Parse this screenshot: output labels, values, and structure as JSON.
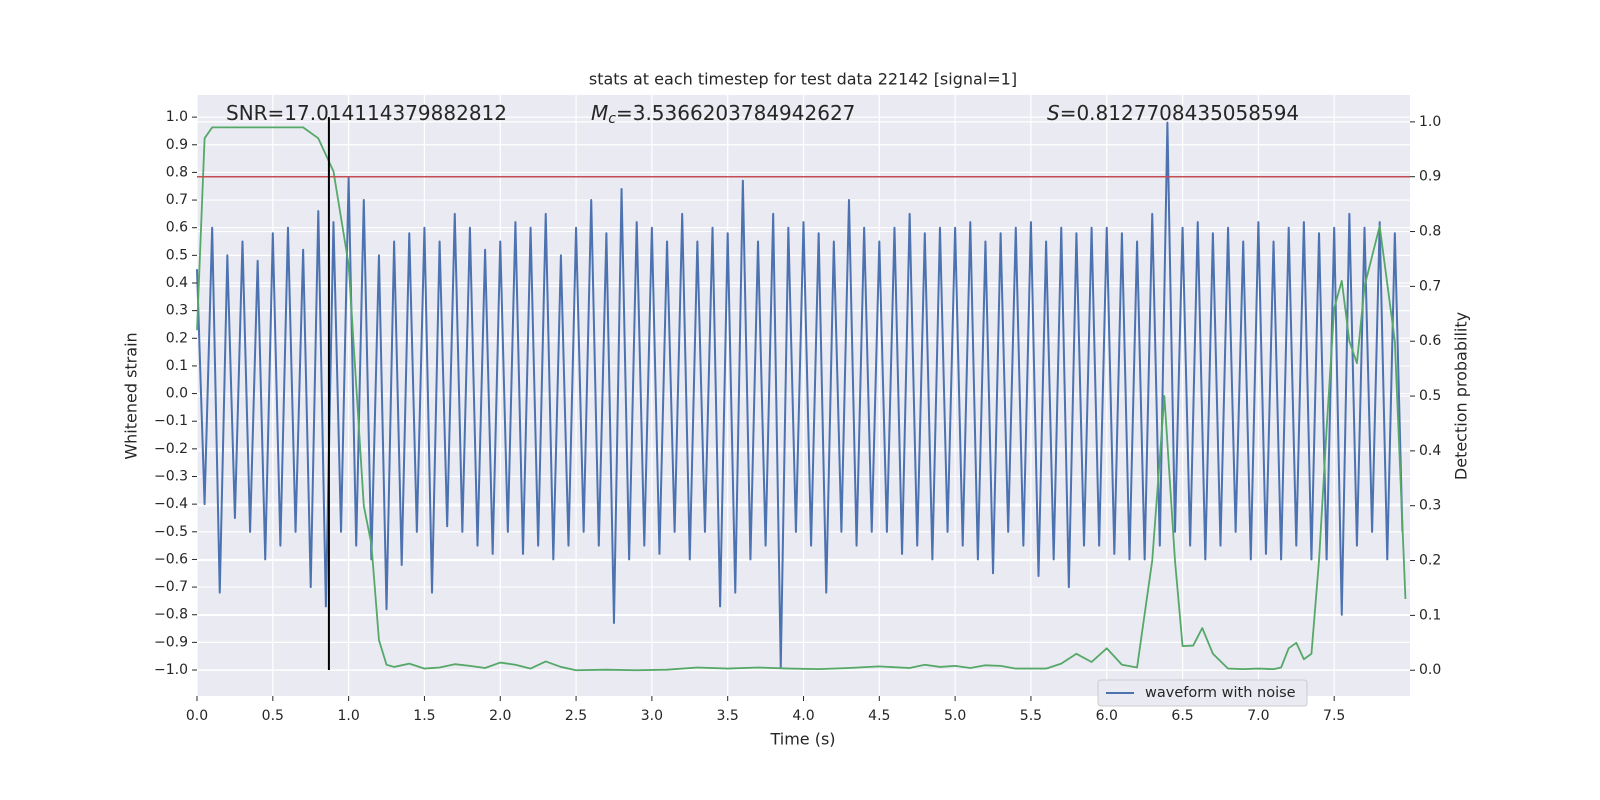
{
  "chart_data": {
    "type": "line",
    "title": "stats at each timestep for test data 22142 [signal=1]",
    "xlabel": "Time (s)",
    "ylabel": "Whitened strain",
    "y2label": "Detection probability",
    "annotations": [
      {
        "text": "SNR=17.014114379882812"
      },
      {
        "symbol": "M",
        "subscript": "c",
        "text": "=3.5366203784942627"
      },
      {
        "symbol": "S",
        "text": "=0.8127708435058594"
      }
    ],
    "xlim": [
      0,
      8.0
    ],
    "ylim": [
      -1.094,
      1.08
    ],
    "y2lim": [
      -0.047,
      1.049
    ],
    "xticks": [
      {
        "value": 0,
        "label": "0.0"
      },
      0.5,
      {
        "value": 1,
        "label": "1.0"
      },
      1.5,
      {
        "value": 2,
        "label": "2.0"
      },
      2.5,
      {
        "value": 3,
        "label": "3.0"
      },
      3.5,
      {
        "value": 4,
        "label": "4.0"
      },
      4.5,
      {
        "value": 5,
        "label": "5.0"
      },
      5.5,
      {
        "value": 6,
        "label": "6.0"
      },
      6.5,
      {
        "value": 7,
        "label": "7.0"
      },
      7.5
    ],
    "yticks": [
      {
        "value": -1,
        "label": "−1.0"
      },
      {
        "value": -0.9,
        "label": "−0.9"
      },
      {
        "value": -0.8,
        "label": "−0.8"
      },
      {
        "value": -0.7,
        "label": "−0.7"
      },
      {
        "value": -0.6,
        "label": "−0.6"
      },
      {
        "value": -0.5,
        "label": "−0.5"
      },
      {
        "value": -0.4,
        "label": "−0.4"
      },
      {
        "value": -0.3,
        "label": "−0.3"
      },
      {
        "value": -0.2,
        "label": "−0.2"
      },
      {
        "value": -0.1,
        "label": "−0.1"
      },
      {
        "value": 0,
        "label": "0.0"
      },
      0.1,
      0.2,
      0.3,
      0.4,
      0.5,
      0.6,
      0.7,
      0.8,
      0.9,
      {
        "value": 1,
        "label": "1.0"
      }
    ],
    "y2ticks": [
      {
        "value": 0,
        "label": "0.0"
      },
      0.1,
      0.2,
      0.3,
      0.4,
      0.5,
      0.6,
      0.7,
      0.8,
      0.9,
      {
        "value": 1,
        "label": "1.0"
      }
    ],
    "grid": true,
    "legend": "lower right",
    "series": [
      {
        "name": "waveform with noise",
        "color": "#4c72b0",
        "x": [
          0,
          0.05,
          0.1,
          0.15,
          0.2,
          0.25,
          0.3,
          0.35,
          0.4,
          0.45,
          0.5,
          0.55,
          0.6,
          0.65,
          0.7,
          0.75,
          0.8,
          0.85,
          0.9,
          0.95,
          1,
          1.05,
          1.1,
          1.15,
          1.2,
          1.25,
          1.3,
          1.35,
          1.4,
          1.45,
          1.5,
          1.55,
          1.6,
          1.65,
          1.7,
          1.75,
          1.8,
          1.85,
          1.9,
          1.95,
          2,
          2.05,
          2.1,
          2.15,
          2.2,
          2.25,
          2.3,
          2.35,
          2.4,
          2.45,
          2.5,
          2.55,
          2.6,
          2.65,
          2.7,
          2.75,
          2.8,
          2.85,
          2.9,
          2.95,
          3,
          3.05,
          3.1,
          3.15,
          3.2,
          3.25,
          3.3,
          3.35,
          3.4,
          3.45,
          3.5,
          3.55,
          3.6,
          3.65,
          3.7,
          3.75,
          3.8,
          3.85,
          3.9,
          3.95,
          4,
          4.05,
          4.1,
          4.15,
          4.2,
          4.25,
          4.3,
          4.35,
          4.4,
          4.45,
          4.5,
          4.55,
          4.6,
          4.65,
          4.7,
          4.75,
          4.8,
          4.85,
          4.9,
          4.95,
          5,
          5.05,
          5.1,
          5.15,
          5.2,
          5.25,
          5.3,
          5.35,
          5.4,
          5.45,
          5.5,
          5.55,
          5.6,
          5.65,
          5.7,
          5.75,
          5.8,
          5.85,
          5.9,
          5.95,
          6,
          6.05,
          6.1,
          6.15,
          6.2,
          6.25,
          6.3,
          6.35,
          6.4,
          6.45,
          6.5,
          6.55,
          6.6,
          6.65,
          6.7,
          6.75,
          6.8,
          6.85,
          6.9,
          6.95,
          7,
          7.05,
          7.1,
          7.15,
          7.2,
          7.25,
          7.3,
          7.35,
          7.4,
          7.45,
          7.5,
          7.55,
          7.6,
          7.65,
          7.7,
          7.75,
          7.8,
          7.85,
          7.9,
          7.95
        ],
        "values": [
          0.45,
          -0.4,
          0.6,
          -0.72,
          0.5,
          -0.45,
          0.55,
          -0.5,
          0.48,
          -0.6,
          0.58,
          -0.55,
          0.6,
          -0.5,
          0.52,
          -0.7,
          0.66,
          -0.77,
          0.62,
          -0.5,
          0.78,
          -0.55,
          0.7,
          -0.6,
          0.5,
          -0.78,
          0.55,
          -0.62,
          0.58,
          -0.5,
          0.6,
          -0.72,
          0.55,
          -0.48,
          0.65,
          -0.5,
          0.6,
          -0.55,
          0.52,
          -0.58,
          0.55,
          -0.5,
          0.62,
          -0.58,
          0.6,
          -0.55,
          0.65,
          -0.6,
          0.5,
          -0.55,
          0.6,
          -0.5,
          0.7,
          -0.55,
          0.58,
          -0.83,
          0.74,
          -0.6,
          0.62,
          -0.55,
          0.6,
          -0.58,
          0.55,
          -0.5,
          0.65,
          -0.6,
          0.55,
          -0.5,
          0.6,
          -0.77,
          0.58,
          -0.72,
          0.77,
          -0.6,
          0.55,
          -0.55,
          0.65,
          -0.99,
          0.6,
          -0.5,
          0.62,
          -0.55,
          0.58,
          -0.72,
          0.55,
          -0.5,
          0.7,
          -0.55,
          0.6,
          -0.5,
          0.55,
          -0.5,
          0.6,
          -0.58,
          0.65,
          -0.55,
          0.58,
          -0.6,
          0.6,
          -0.5,
          0.6,
          -0.55,
          0.62,
          -0.6,
          0.55,
          -0.65,
          0.58,
          -0.5,
          0.6,
          -0.55,
          0.62,
          -0.66,
          0.55,
          -0.6,
          0.6,
          -0.7,
          0.58,
          -0.55,
          0.6,
          -0.55,
          0.6,
          -0.58,
          0.58,
          -0.6,
          0.55,
          -0.6,
          0.65,
          -0.55,
          0.98,
          -0.5,
          0.6,
          -0.55,
          0.62,
          -0.6,
          0.58,
          -0.55,
          0.6,
          -0.5,
          0.55,
          -0.6,
          0.62,
          -0.58,
          0.55,
          -0.6,
          0.6,
          -0.55,
          0.62,
          -0.6,
          0.58,
          -0.6,
          0.6,
          -0.8,
          0.65,
          -0.55,
          0.6,
          -0.5,
          0.62,
          -0.6,
          0.58,
          -0.5
        ]
      },
      {
        "color": "#55a868",
        "axis": "y2",
        "x": [
          0,
          0.05,
          0.1,
          0.2,
          0.3,
          0.4,
          0.5,
          0.6,
          0.7,
          0.8,
          0.9,
          1,
          1.1,
          1.15,
          1.2,
          1.25,
          1.3,
          1.4,
          1.5,
          1.6,
          1.7,
          1.8,
          1.9,
          2,
          2.1,
          2.2,
          2.3,
          2.4,
          2.5,
          2.7,
          2.9,
          3.1,
          3.3,
          3.5,
          3.7,
          3.9,
          4.1,
          4.3,
          4.5,
          4.7,
          4.8,
          4.9,
          5,
          5.1,
          5.2,
          5.3,
          5.4,
          5.6,
          5.7,
          5.8,
          5.9,
          6,
          6.1,
          6.2,
          6.3,
          6.38,
          6.45,
          6.5,
          6.57,
          6.63,
          6.7,
          6.8,
          6.9,
          7,
          7.1,
          7.15,
          7.2,
          7.25,
          7.3,
          7.35,
          7.4,
          7.45,
          7.5,
          7.55,
          7.6,
          7.65,
          7.7,
          7.8,
          7.9,
          7.97
        ],
        "values": [
          0.62,
          0.97,
          0.99,
          0.99,
          0.99,
          0.99,
          0.99,
          0.99,
          0.99,
          0.97,
          0.91,
          0.74,
          0.3,
          0.23,
          0.055,
          0.01,
          0.006,
          0.012,
          0.003,
          0.005,
          0.011,
          0.008,
          0.004,
          0.014,
          0.01,
          0.003,
          0.016,
          0.006,
          0.0,
          0.001,
          0.0,
          0.001,
          0.005,
          0.003,
          0.005,
          0.003,
          0.002,
          0.004,
          0.007,
          0.004,
          0.01,
          0.006,
          0.008,
          0.004,
          0.009,
          0.008,
          0.003,
          0.003,
          0.012,
          0.03,
          0.015,
          0.04,
          0.01,
          0.005,
          0.2,
          0.5,
          0.2,
          0.044,
          0.045,
          0.077,
          0.03,
          0.003,
          0.002,
          0.003,
          0.002,
          0.005,
          0.04,
          0.05,
          0.02,
          0.03,
          0.2,
          0.44,
          0.66,
          0.71,
          0.6,
          0.56,
          0.7,
          0.81,
          0.6,
          0.13
        ]
      }
    ],
    "vlines": [
      {
        "x": 0.87,
        "ymin": -1,
        "ymax": 1,
        "color": "#000000"
      }
    ],
    "hlines": [
      {
        "y": 0.9,
        "axis": "y2",
        "color": "#c44e52"
      }
    ]
  }
}
